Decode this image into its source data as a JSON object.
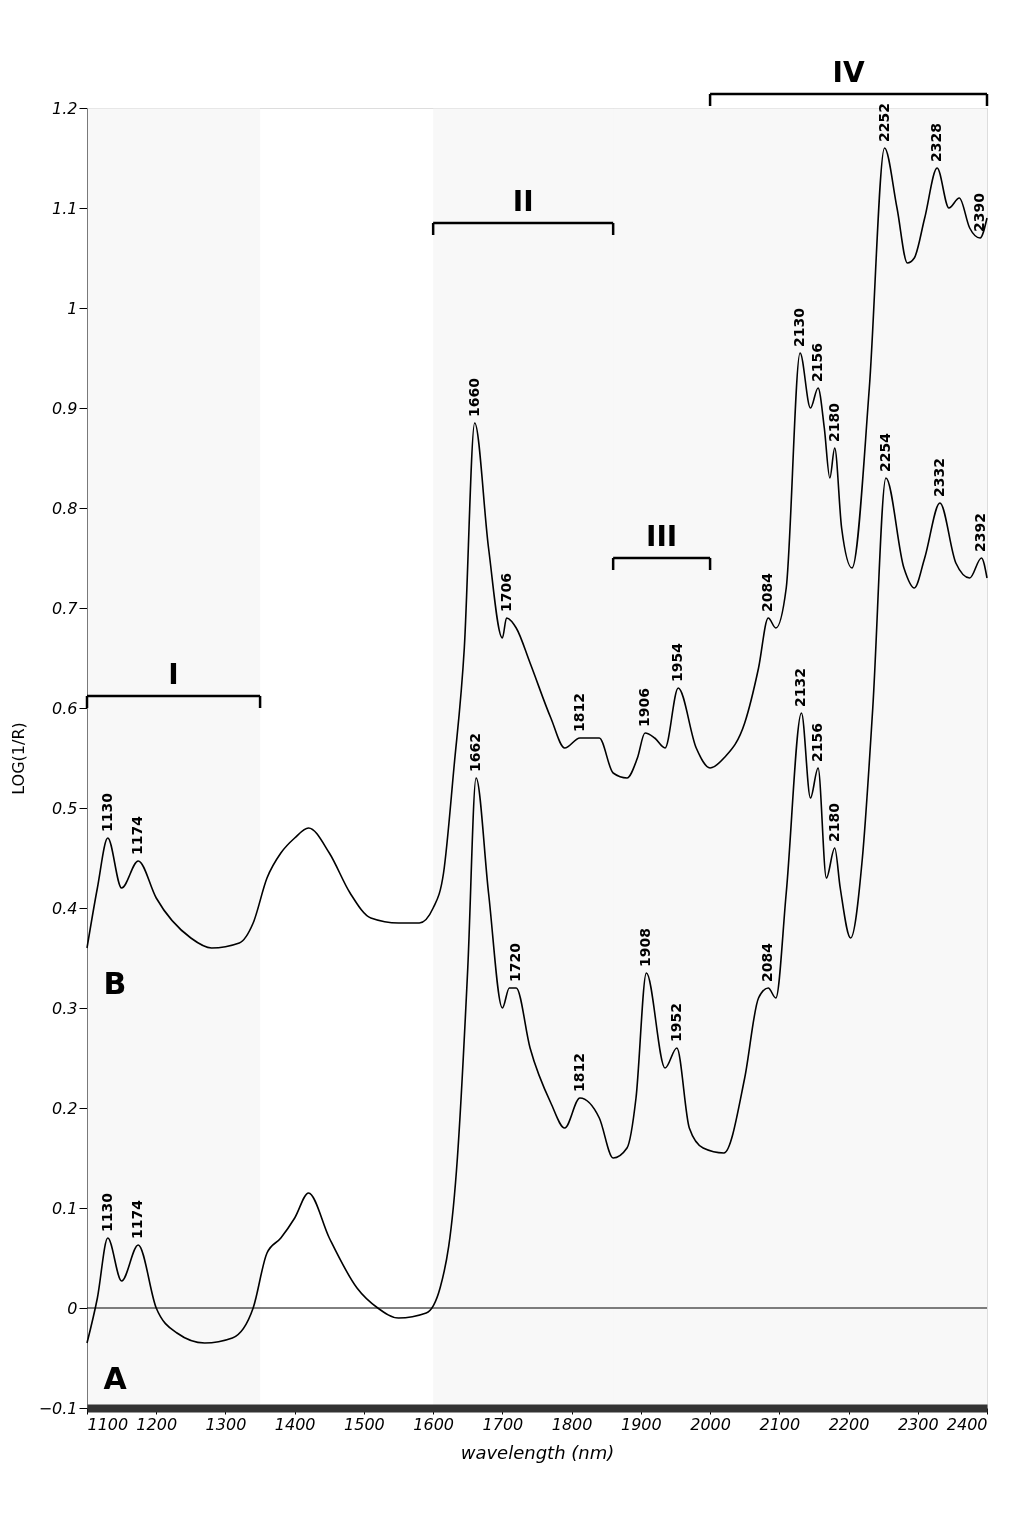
{
  "chart_data": {
    "type": "line",
    "xlabel": "wavelength (nm)",
    "ylabel": "LOG(1/R)",
    "xlim": [
      1100,
      2400
    ],
    "xticks": [
      1100,
      1200,
      1300,
      1400,
      1500,
      1600,
      1700,
      1800,
      1900,
      2000,
      2100,
      2200,
      2300,
      2400
    ],
    "ylim": [
      -0.1,
      1.2
    ],
    "yticks": [
      -0.1,
      0,
      0.1,
      0.2,
      0.3,
      0.4,
      0.5,
      0.6,
      0.7,
      0.8,
      0.9,
      1,
      1.1,
      1.2
    ],
    "grid": false,
    "series": [
      {
        "name": "A",
        "color": "#000000",
        "x": [
          1100,
          1115,
          1130,
          1150,
          1174,
          1200,
          1230,
          1270,
          1310,
          1340,
          1360,
          1380,
          1400,
          1420,
          1450,
          1490,
          1520,
          1550,
          1590,
          1610,
          1635,
          1650,
          1662,
          1680,
          1700,
          1710,
          1720,
          1740,
          1770,
          1790,
          1812,
          1840,
          1860,
          1880,
          1893,
          1908,
          1935,
          1952,
          1970,
          1990,
          2020,
          2050,
          2070,
          2084,
          2095,
          2110,
          2132,
          2145,
          2156,
          2168,
          2180,
          2188,
          2203,
          2220,
          2235,
          2254,
          2280,
          2295,
          2310,
          2332,
          2355,
          2375,
          2392,
          2400
        ],
        "values": [
          -0.035,
          0.01,
          0.07,
          0.027,
          0.063,
          0.0,
          -0.025,
          -0.035,
          -0.03,
          0.0,
          0.055,
          0.07,
          0.09,
          0.115,
          0.07,
          0.02,
          0.0,
          -0.01,
          -0.005,
          0.02,
          0.15,
          0.34,
          0.53,
          0.415,
          0.3,
          0.32,
          0.32,
          0.26,
          0.205,
          0.18,
          0.21,
          0.19,
          0.15,
          0.16,
          0.21,
          0.335,
          0.24,
          0.26,
          0.18,
          0.16,
          0.155,
          0.23,
          0.31,
          0.32,
          0.31,
          0.415,
          0.595,
          0.51,
          0.54,
          0.43,
          0.46,
          0.42,
          0.37,
          0.45,
          0.6,
          0.83,
          0.74,
          0.72,
          0.75,
          0.805,
          0.745,
          0.73,
          0.75,
          0.73
        ]
      },
      {
        "name": "B",
        "color": "#000000",
        "x": [
          1100,
          1115,
          1130,
          1150,
          1174,
          1200,
          1250,
          1280,
          1320,
          1340,
          1360,
          1380,
          1400,
          1420,
          1450,
          1480,
          1510,
          1550,
          1580,
          1600,
          1615,
          1630,
          1645,
          1660,
          1680,
          1700,
          1706,
          1720,
          1740,
          1770,
          1790,
          1812,
          1840,
          1860,
          1880,
          1895,
          1906,
          1920,
          1935,
          1954,
          1980,
          2000,
          2020,
          2050,
          2070,
          2084,
          2095,
          2110,
          2130,
          2145,
          2156,
          2165,
          2173,
          2180,
          2190,
          2205,
          2230,
          2252,
          2270,
          2285,
          2295,
          2310,
          2328,
          2345,
          2360,
          2375,
          2390,
          2400
        ],
        "values": [
          0.36,
          0.42,
          0.47,
          0.42,
          0.447,
          0.41,
          0.37,
          0.36,
          0.365,
          0.385,
          0.43,
          0.455,
          0.47,
          0.48,
          0.455,
          0.415,
          0.39,
          0.385,
          0.385,
          0.4,
          0.435,
          0.54,
          0.66,
          0.885,
          0.76,
          0.67,
          0.69,
          0.68,
          0.645,
          0.59,
          0.56,
          0.57,
          0.57,
          0.535,
          0.53,
          0.55,
          0.575,
          0.57,
          0.56,
          0.62,
          0.56,
          0.54,
          0.55,
          0.585,
          0.64,
          0.69,
          0.68,
          0.72,
          0.955,
          0.9,
          0.92,
          0.88,
          0.83,
          0.86,
          0.78,
          0.74,
          0.92,
          1.16,
          1.1,
          1.045,
          1.05,
          1.09,
          1.14,
          1.1,
          1.11,
          1.08,
          1.07,
          1.09
        ]
      }
    ],
    "ref_lines": [
      {
        "axis": "y",
        "value": 0
      }
    ],
    "bands": [
      {
        "axis": "x",
        "from": 1100,
        "to": 1350,
        "label": "I"
      },
      {
        "axis": "x",
        "from": 1600,
        "to": 1860,
        "label": "II"
      },
      {
        "axis": "x",
        "from": 1860,
        "to": 2000,
        "label": "III"
      },
      {
        "axis": "x",
        "from": 2000,
        "to": 2400,
        "label": "IV"
      }
    ],
    "annotations": [
      {
        "text": "1130",
        "x": 1130,
        "y": 0.47
      },
      {
        "text": "1174",
        "x": 1174,
        "y": 0.447
      },
      {
        "text": "1660",
        "x": 1660,
        "y": 0.885
      },
      {
        "text": "1706",
        "x": 1706,
        "y": 0.69
      },
      {
        "text": "1812",
        "x": 1812,
        "y": 0.57
      },
      {
        "text": "1906",
        "x": 1906,
        "y": 0.575
      },
      {
        "text": "1954",
        "x": 1954,
        "y": 0.62
      },
      {
        "text": "2084",
        "x": 2084,
        "y": 0.69
      },
      {
        "text": "2130",
        "x": 2130,
        "y": 0.955
      },
      {
        "text": "2156",
        "x": 2156,
        "y": 0.92
      },
      {
        "text": "2180",
        "x": 2180,
        "y": 0.86
      },
      {
        "text": "2252",
        "x": 2252,
        "y": 1.16
      },
      {
        "text": "2328",
        "x": 2328,
        "y": 1.14
      },
      {
        "text": "2390",
        "x": 2390,
        "y": 1.07
      },
      {
        "text": "1130",
        "x": 1130,
        "y": 0.07
      },
      {
        "text": "1174",
        "x": 1174,
        "y": 0.063
      },
      {
        "text": "1662",
        "x": 1662,
        "y": 0.53
      },
      {
        "text": "1720",
        "x": 1720,
        "y": 0.32
      },
      {
        "text": "1812",
        "x": 1812,
        "y": 0.21
      },
      {
        "text": "1908",
        "x": 1908,
        "y": 0.335
      },
      {
        "text": "1952",
        "x": 1952,
        "y": 0.26
      },
      {
        "text": "2084",
        "x": 2084,
        "y": 0.32
      },
      {
        "text": "2132",
        "x": 2132,
        "y": 0.595
      },
      {
        "text": "2156",
        "x": 2156,
        "y": 0.54
      },
      {
        "text": "2180",
        "x": 2180,
        "y": 0.46
      },
      {
        "text": "2254",
        "x": 2254,
        "y": 0.83
      },
      {
        "text": "2332",
        "x": 2332,
        "y": 0.805
      },
      {
        "text": "2392",
        "x": 2392,
        "y": 0.75
      }
    ]
  }
}
